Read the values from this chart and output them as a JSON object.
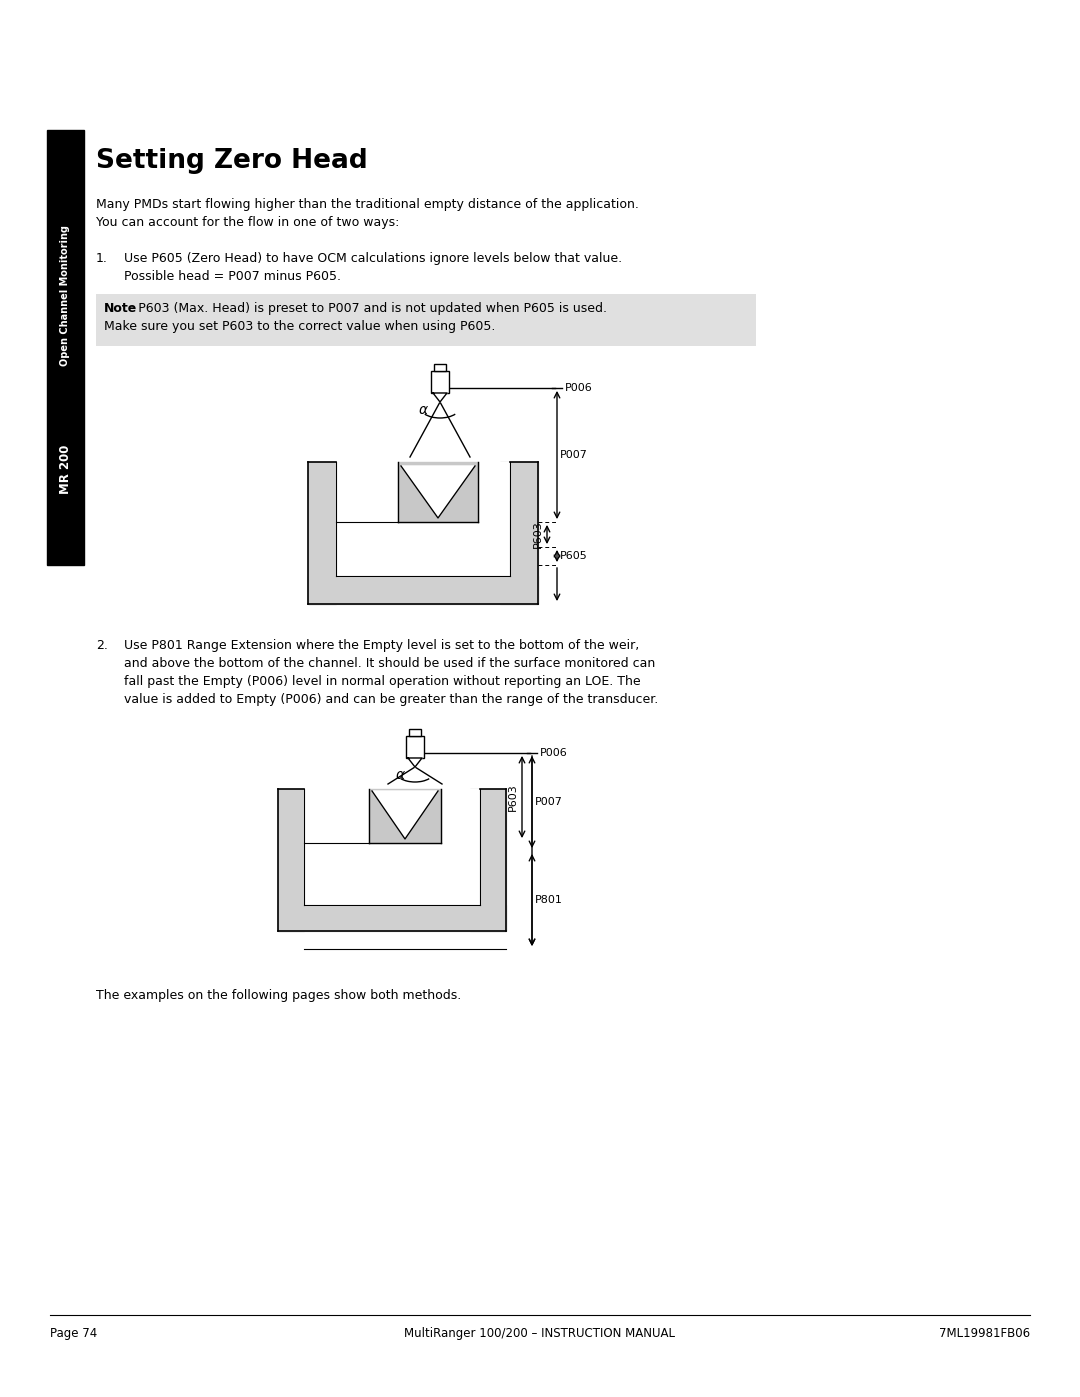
{
  "title": "Setting Zero Head",
  "sidebar_text_line1": "Open Channel Monitoring",
  "sidebar_text_line2": "MR 200",
  "intro_text1": "Many PMDs start flowing higher than the traditional empty distance of the application.",
  "intro_text2": "You can account for the flow in one of two ways:",
  "item1_line1": "1.\tUse P605 (Zero Head) to have OCM calculations ignore levels below that value.",
  "item1_line2": "\tPossible head = P007 minus P605.",
  "note_bold": "Note",
  "note_text": ": P603 (Max. Head) is preset to P007 and is not updated when P605 is used.\nMake sure you set P603 to the correct value when using P605.",
  "item2_line1": "2.\tUse P801 Range Extension where the Empty level is set to the bottom of the weir,",
  "item2_line2": "\tand above the bottom of the channel. It should be used if the surface monitored can",
  "item2_line3": "\tfall past the Empty (P006) level in normal operation without reporting an LOE. The",
  "item2_line4": "\tvalue is added to Empty (P006) and can be greater than the range of the transducer.",
  "closing_text": "The examples on the following pages show both methods.",
  "footer_left": "Page 74",
  "footer_center": "MultiRanger 100/200 – INSTRUCTION MANUAL",
  "footer_right": "7ML19981FB06",
  "bg_color": "#ffffff",
  "sidebar_bg": "#000000",
  "sidebar_text_color": "#ffffff",
  "note_bg": "#e0e0e0",
  "line_color": "#000000",
  "gray_fill": "#d0d0d0",
  "gray_fill2": "#c8c8c8"
}
